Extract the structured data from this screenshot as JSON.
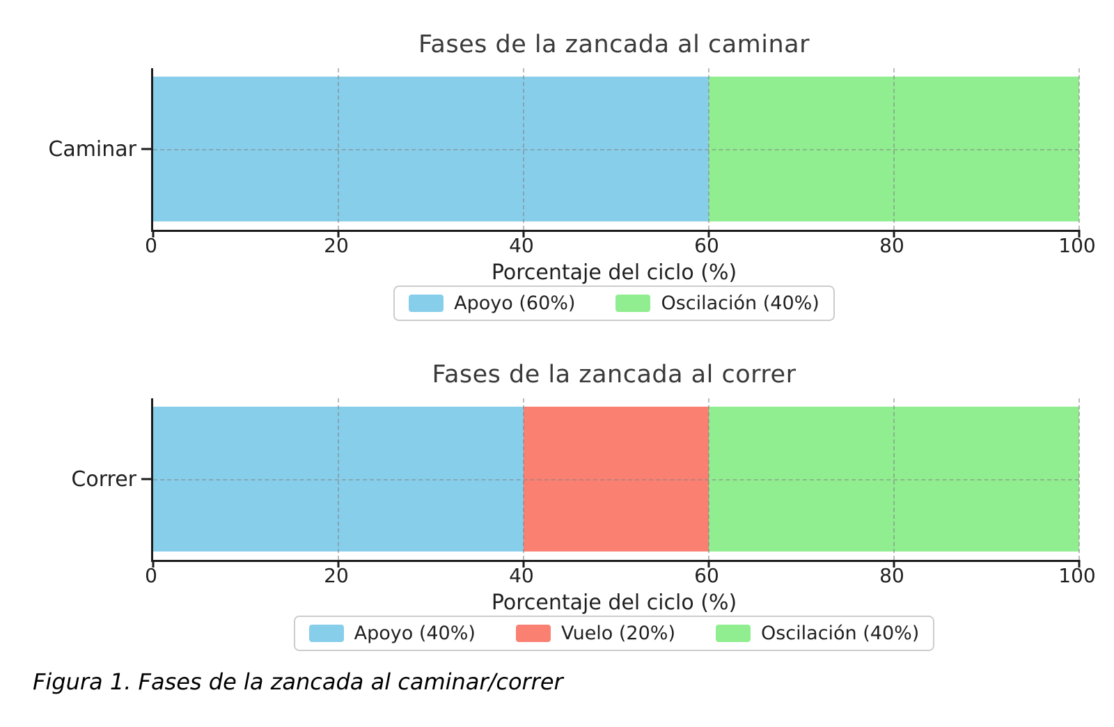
{
  "page": {
    "background": "#ffffff"
  },
  "caption": "Figura 1. Fases de la zancada al caminar/correr",
  "colors": {
    "apoyo": "#87CEEB",
    "vuelo": "#FA8072",
    "oscilacion": "#90EE90",
    "axis": "#1c1c1c",
    "title_text": "#3a3a3a",
    "tick_text": "#1f1f1f",
    "legend_border": "#cccccc"
  },
  "chart_data": [
    {
      "type": "bar",
      "orientation": "horizontal",
      "stacked": true,
      "title": "Fases de la zancada al caminar",
      "categories": [
        "Caminar"
      ],
      "series": [
        {
          "name": "Apoyo (60%)",
          "phase": "Apoyo",
          "values": [
            60
          ],
          "color": "#87CEEB"
        },
        {
          "name": "Oscilación (40%)",
          "phase": "Oscilación",
          "values": [
            40
          ],
          "color": "#90EE90"
        }
      ],
      "xlabel": "Porcentaje del ciclo (%)",
      "xlim": [
        0,
        100
      ],
      "xticks": [
        0,
        20,
        40,
        60,
        80,
        100
      ],
      "grid": true,
      "legend_position": "below"
    },
    {
      "type": "bar",
      "orientation": "horizontal",
      "stacked": true,
      "title": "Fases de la zancada al correr",
      "categories": [
        "Correr"
      ],
      "series": [
        {
          "name": "Apoyo (40%)",
          "phase": "Apoyo",
          "values": [
            40
          ],
          "color": "#87CEEB"
        },
        {
          "name": "Vuelo (20%)",
          "phase": "Vuelo",
          "values": [
            20
          ],
          "color": "#FA8072"
        },
        {
          "name": "Oscilación (40%)",
          "phase": "Oscilación",
          "values": [
            40
          ],
          "color": "#90EE90"
        }
      ],
      "xlabel": "Porcentaje del ciclo (%)",
      "xlim": [
        0,
        100
      ],
      "xticks": [
        0,
        20,
        40,
        60,
        80,
        100
      ],
      "grid": true,
      "legend_position": "below"
    }
  ]
}
